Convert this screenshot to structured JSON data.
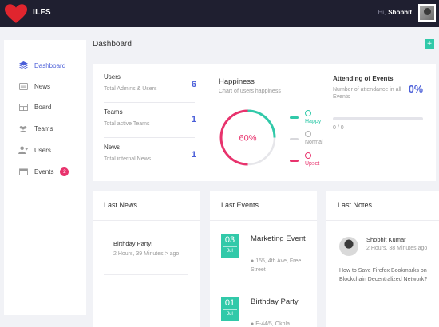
{
  "app": {
    "brand": "ILFS",
    "greeting": "Hi,",
    "user": "Shobhit"
  },
  "sidebar": {
    "items": [
      {
        "label": "Dashboard",
        "icon": "layers-icon",
        "active": true
      },
      {
        "label": "News",
        "icon": "news-icon"
      },
      {
        "label": "Board",
        "icon": "board-icon"
      },
      {
        "label": "Teams",
        "icon": "users-icon"
      },
      {
        "label": "Users",
        "icon": "user-plus-icon"
      },
      {
        "label": "Events",
        "icon": "calendar-icon",
        "badge": "2"
      }
    ]
  },
  "dashboard": {
    "title": "Dashboard",
    "add_label": "+"
  },
  "stats": [
    {
      "label": "Users",
      "sub": "Total Admins & Users",
      "value": "6"
    },
    {
      "label": "Teams",
      "sub": "Total active Teams",
      "value": "1"
    },
    {
      "label": "News",
      "sub": "Total internal News",
      "value": "1"
    }
  ],
  "happiness": {
    "title": "Happiness",
    "subtitle": "Chart of users happiness",
    "percent_label": "60%",
    "percent": 60,
    "legend": [
      {
        "label": "Happy",
        "color": "#31c9a9"
      },
      {
        "label": "Normal",
        "color": "#b0b0b0"
      },
      {
        "label": "Upset",
        "color": "#e8336d"
      }
    ]
  },
  "attending": {
    "title": "Attending of Events",
    "subtitle": "Number of attendance in all Events",
    "percent_label": "0%",
    "count": "0 / 0",
    "progress": 0
  },
  "news": {
    "title": "Last News",
    "items": [
      {
        "title": "Birthday Party!",
        "meta": "2 Hours, 39 Minutes > ago"
      }
    ]
  },
  "events": {
    "title": "Last Events",
    "items": [
      {
        "day": "03",
        "month": "Jul",
        "title": "Marketing Event",
        "location": "155, 4th Ave, Free Street"
      },
      {
        "day": "01",
        "month": "Jul",
        "title": "Birthday Party",
        "location": "E-44/5, Okhla"
      }
    ]
  },
  "notes": {
    "title": "Last Notes",
    "items": [
      {
        "author": "Shobhit Kumar",
        "meta": "2 Hours, 38 Minutes ago",
        "text": "How to Save Firefox Bookmarks on Blockchain Decentralized Network?"
      }
    ]
  },
  "colors": {
    "accent": "#4a5ed8",
    "teal": "#31c9a9",
    "pink": "#e8336d",
    "topbar": "#1f1f30"
  }
}
